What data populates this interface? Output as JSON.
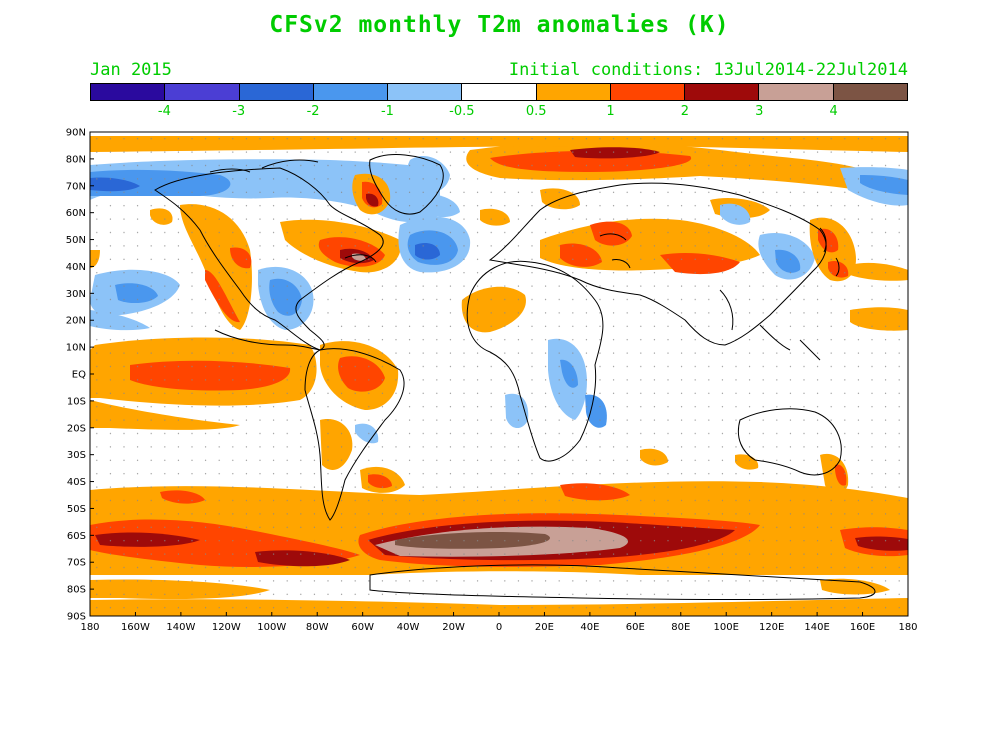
{
  "title": "CFSv2 monthly T2m anomalies (K)",
  "valid_month": "Jan 2015",
  "initial_conditions": "Initial conditions: 13Jul2014-22Jul2014",
  "colorbar": {
    "colors": [
      "#2a0a9e",
      "#4b3ed4",
      "#2a67d6",
      "#4a97ee",
      "#8cc3f8",
      "#ffffff",
      "#ffa500",
      "#ff4500",
      "#9e0a0a",
      "#c8a096",
      "#7c5444"
    ],
    "tick_labels": [
      "-4",
      "-3",
      "-2",
      "-1",
      "-0.5",
      "0.5",
      "1",
      "2",
      "3",
      "4"
    ]
  },
  "axes": {
    "lat_labels": [
      "90N",
      "80N",
      "70N",
      "60N",
      "50N",
      "40N",
      "30N",
      "20N",
      "10N",
      "EQ",
      "10S",
      "20S",
      "30S",
      "40S",
      "50S",
      "60S",
      "70S",
      "80S",
      "90S"
    ],
    "lon_labels": [
      "180",
      "160W",
      "140W",
      "120W",
      "100W",
      "80W",
      "60W",
      "40W",
      "20W",
      "0",
      "20E",
      "40E",
      "60E",
      "80E",
      "100E",
      "120E",
      "140E",
      "160E",
      "180"
    ]
  }
}
